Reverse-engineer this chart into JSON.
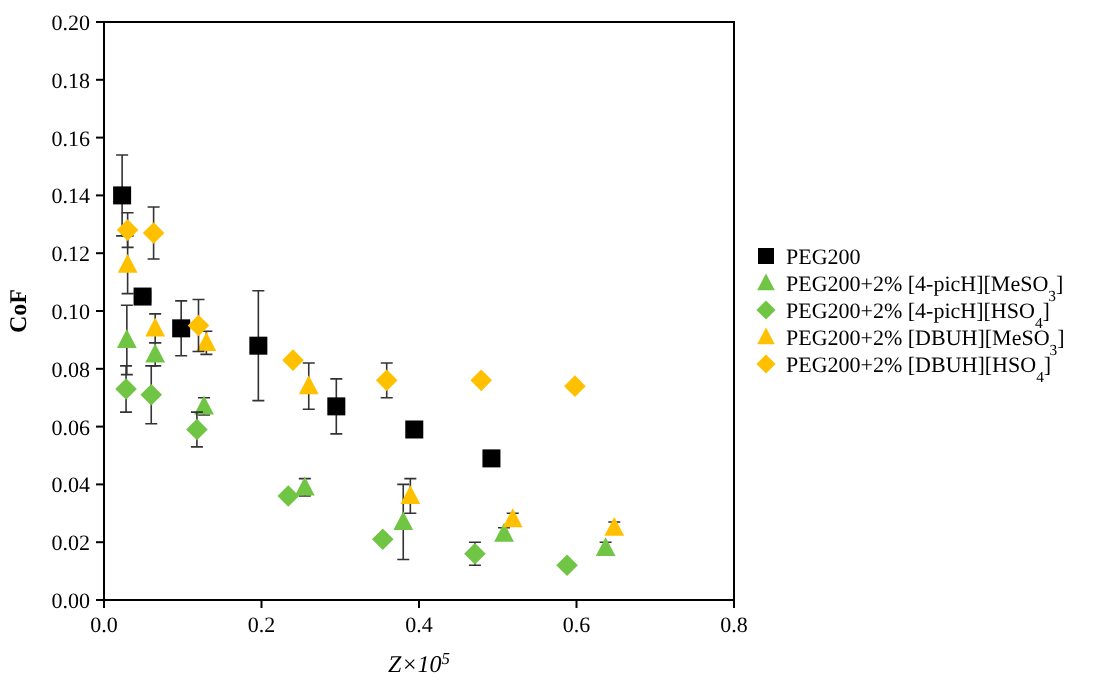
{
  "chart_data": {
    "type": "scatter",
    "xlabel": "Z×10$^{5}$",
    "ylabel": "CoF",
    "xlim": [
      0,
      0.8
    ],
    "xticks": [
      {
        "value": 0,
        "label": "0.0"
      },
      {
        "value": 0.2,
        "label": "0.2"
      },
      {
        "value": 0.4,
        "label": "0.4"
      },
      {
        "value": 0.6,
        "label": "0.6"
      },
      {
        "value": 0.8,
        "label": "0.8"
      }
    ],
    "ylim": [
      0,
      0.2
    ],
    "yticks": [
      {
        "value": 0,
        "label": "0.00"
      },
      {
        "value": 0.02,
        "label": "0.02"
      },
      {
        "value": 0.04,
        "label": "0.04"
      },
      {
        "value": 0.06,
        "label": "0.06"
      },
      {
        "value": 0.08,
        "label": "0.08"
      },
      {
        "value": 0.1,
        "label": "0.10"
      },
      {
        "value": 0.12,
        "label": "0.12"
      },
      {
        "value": 0.14,
        "label": "0.14"
      },
      {
        "value": 0.16,
        "label": "0.16"
      },
      {
        "value": 0.18,
        "label": "0.18"
      },
      {
        "value": 0.2,
        "label": "0.20"
      }
    ],
    "grid": false,
    "legend": "right",
    "series": [
      {
        "name": "PEG200",
        "color": "#000000",
        "marker": "square",
        "x": [
          0.023,
          0.049,
          0.098,
          0.196,
          0.295,
          0.394,
          0.492
        ],
        "values": [
          0.14,
          0.105,
          0.094,
          0.088,
          0.067,
          0.059,
          0.049
        ],
        "errors": [
          0.014,
          null,
          0.0095,
          0.019,
          0.0095,
          null,
          null
        ],
        "xerrors": [
          null,
          0.01,
          null,
          null,
          null,
          null,
          null
        ]
      },
      {
        "name": "PEG200+2% [4-picH][MeSO$_{3}$]",
        "color": "#70c545",
        "marker": "triangle",
        "x": [
          0.029,
          0.065,
          0.127,
          0.255,
          0.38,
          0.508,
          0.637
        ],
        "values": [
          0.09,
          0.085,
          0.067,
          0.039,
          0.027,
          0.023,
          0.018
        ],
        "errors": [
          0.012,
          0.004,
          0.003,
          0.003,
          0.013,
          0.002,
          0.002
        ]
      },
      {
        "name": "PEG200+2% [4-picH][HSO$_{4}$]",
        "color": "#70c545",
        "marker": "diamond",
        "x": [
          0.028,
          0.06,
          0.118,
          0.234,
          0.354,
          0.471,
          0.588
        ],
        "values": [
          0.073,
          0.071,
          0.059,
          0.036,
          0.021,
          0.016,
          0.012
        ],
        "errors": [
          0.008,
          0.01,
          0.006,
          null,
          null,
          0.004,
          null
        ]
      },
      {
        "name": "PEG200+2% [DBUH][MeSO$_{3}$]",
        "color": "#ffc000",
        "marker": "triangle",
        "x": [
          0.03,
          0.065,
          0.13,
          0.26,
          0.389,
          0.519,
          0.648
        ],
        "values": [
          0.116,
          0.094,
          0.089,
          0.074,
          0.036,
          0.028,
          0.025
        ],
        "errors": [
          0.01,
          0.005,
          0.004,
          0.008,
          0.006,
          0.002,
          0.002
        ]
      },
      {
        "name": "PEG200+2% [DBUH][HSO$_{4}$]",
        "color": "#ffc000",
        "marker": "diamond",
        "x": [
          0.03,
          0.063,
          0.12,
          0.24,
          0.359,
          0.479,
          0.598
        ],
        "values": [
          0.128,
          0.127,
          0.095,
          0.083,
          0.076,
          0.076,
          0.074
        ],
        "errors": [
          0.006,
          0.009,
          0.009,
          null,
          0.006,
          null,
          null
        ]
      }
    ]
  }
}
